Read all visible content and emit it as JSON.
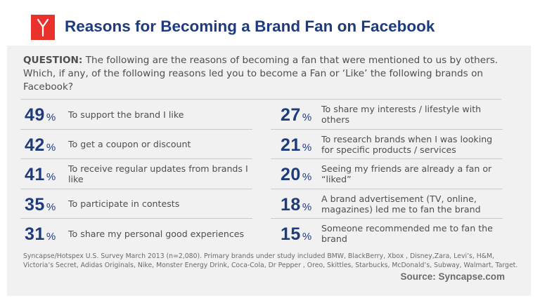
{
  "header": {
    "title": "Reasons for Becoming a Brand Fan on Facebook"
  },
  "question": {
    "label": "QUESTION:",
    "text": " The following are the reasons of becoming a fan that were mentioned to us by others. Which, if any, of the following reasons led you to become a Fan or ‘Like’ the following brands on Facebook?"
  },
  "chart_data": {
    "type": "table",
    "percent_sign": "%",
    "left": [
      {
        "value": 49,
        "label": "To support the brand I like"
      },
      {
        "value": 42,
        "label": "To get a coupon or discount"
      },
      {
        "value": 41,
        "label": "To receive regular updates from brands I like"
      },
      {
        "value": 35,
        "label": "To participate in contests"
      },
      {
        "value": 31,
        "label": "To share my personal good experiences"
      }
    ],
    "right": [
      {
        "value": 27,
        "label": "To share my interests / lifestyle with others"
      },
      {
        "value": 21,
        "label": "To research brands when I was looking for specific products / services"
      },
      {
        "value": 20,
        "label": "Seeing my friends are already a fan or “liked”"
      },
      {
        "value": 18,
        "label": "A brand advertisement (TV, online, magazines) led me to fan the brand"
      },
      {
        "value": 15,
        "label": "Someone recommended me to fan the brand"
      }
    ]
  },
  "footnote": "Syncapse/Hotspex U.S. Survey March 2013 (n=2,080). Primary brands under study included BMW, BlackBerry,  Xbox , Disney,Zara, Levi’s, H&M, Victoria’s Secret, Adidas Originals, Nike, Monster Energy Drink, Coca-Cola, Dr Pepper , Oreo, Skittles, Starbucks, McDonald’s, Subway,  Walmart, Target.",
  "source": "Source: Syncapse.com",
  "colors": {
    "accent": "#1e3b7d",
    "logo": "#e8322b",
    "background": "#f1f1f2"
  },
  "icons": {
    "logo": "syncapse-logo-icon"
  }
}
